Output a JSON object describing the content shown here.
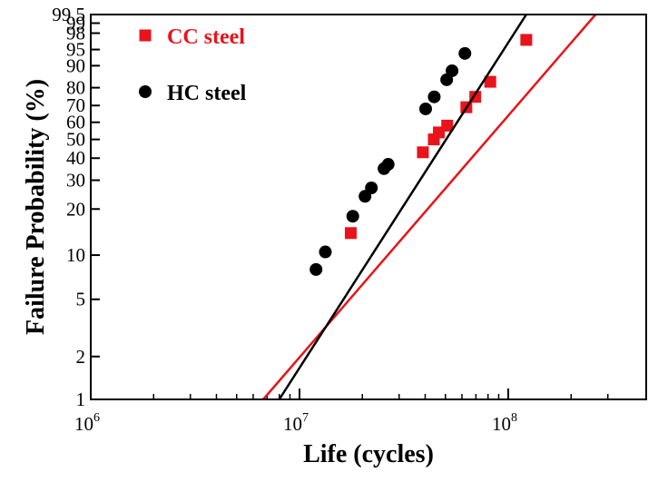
{
  "chart_data": {
    "type": "scatter",
    "xlabel": "Life (cycles)",
    "ylabel": "Failure Probability (%)",
    "x_scale": "log",
    "y_scale": "weibull-probability",
    "xlim": [
      1000000,
      300000000
    ],
    "ylim": [
      1,
      99.5
    ],
    "x_ticks": [
      {
        "value": 1000000,
        "base": "10",
        "exp": "6"
      },
      {
        "value": 10000000,
        "base": "10",
        "exp": "7"
      },
      {
        "value": 100000000,
        "base": "10",
        "exp": "8"
      }
    ],
    "y_ticks": [
      {
        "value": 1,
        "label": "1"
      },
      {
        "value": 2,
        "label": "2"
      },
      {
        "value": 5,
        "label": "5"
      },
      {
        "value": 10,
        "label": "10"
      },
      {
        "value": 20,
        "label": "20"
      },
      {
        "value": 30,
        "label": "30"
      },
      {
        "value": 40,
        "label": "40"
      },
      {
        "value": 50,
        "label": "50"
      },
      {
        "value": 60,
        "label": "60"
      },
      {
        "value": 70,
        "label": "70"
      },
      {
        "value": 80,
        "label": "80"
      },
      {
        "value": 90,
        "label": "90"
      },
      {
        "value": 95,
        "label": "95"
      },
      {
        "value": 98,
        "label": "98"
      },
      {
        "value": 99,
        "label": "99"
      },
      {
        "value": 99.5,
        "label": "99.5"
      }
    ],
    "legend_position": "top-left",
    "series": [
      {
        "name": "CC steel",
        "marker": "square",
        "color": "#e8131b",
        "points": [
          {
            "x": 17600000,
            "y": 14
          },
          {
            "x": 39000000,
            "y": 43
          },
          {
            "x": 44000000,
            "y": 50
          },
          {
            "x": 46500000,
            "y": 54
          },
          {
            "x": 51000000,
            "y": 58
          },
          {
            "x": 63000000,
            "y": 69
          },
          {
            "x": 69500000,
            "y": 75
          },
          {
            "x": 82000000,
            "y": 83
          },
          {
            "x": 122000000,
            "y": 97
          }
        ],
        "fit_line": [
          {
            "x": 6700000,
            "y": 1
          },
          {
            "x": 262000000,
            "y": 99.5
          }
        ]
      },
      {
        "name": "HC steel",
        "marker": "circle",
        "color": "#000000",
        "points": [
          {
            "x": 12000000,
            "y": 8
          },
          {
            "x": 13300000,
            "y": 10.5
          },
          {
            "x": 18000000,
            "y": 18
          },
          {
            "x": 20600000,
            "y": 24
          },
          {
            "x": 22100000,
            "y": 27
          },
          {
            "x": 25400000,
            "y": 35
          },
          {
            "x": 26600000,
            "y": 37
          },
          {
            "x": 40200000,
            "y": 68
          },
          {
            "x": 44200000,
            "y": 75
          },
          {
            "x": 50700000,
            "y": 84
          },
          {
            "x": 53800000,
            "y": 88
          },
          {
            "x": 62000000,
            "y": 94
          }
        ],
        "fit_line": [
          {
            "x": 8000000,
            "y": 1
          },
          {
            "x": 122000000,
            "y": 99.5
          }
        ]
      }
    ]
  }
}
